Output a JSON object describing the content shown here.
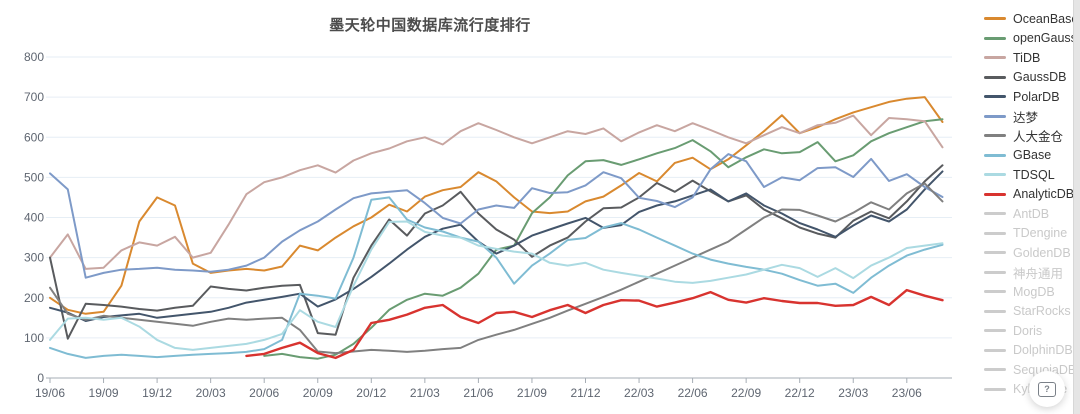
{
  "title": "墨天轮中国数据库流行度排行",
  "axes": {
    "y_tick_labels": [
      "0",
      "100",
      "200",
      "300",
      "400",
      "500",
      "600",
      "700",
      "800"
    ],
    "x_tick_labels": [
      "19/06",
      "19/09",
      "19/12",
      "20/03",
      "20/06",
      "20/09",
      "20/12",
      "21/03",
      "21/06",
      "21/09",
      "21/12",
      "22/03",
      "22/06",
      "22/09",
      "22/12",
      "23/03",
      "23/06"
    ]
  },
  "colors": {
    "grid": "#e6eef5",
    "axis": "#a6adb5",
    "axis_text": "#5f6671",
    "inactive": "#cccccc"
  },
  "ui": {
    "help_button_label": "?",
    "scrollbar": true
  },
  "chart_data": {
    "type": "line",
    "title": "墨天轮中国数据库流行度排行",
    "xlabel": "",
    "ylabel": "",
    "ylim": [
      0,
      800
    ],
    "grid": true,
    "legend_position": "right",
    "x_resolution": "monthly",
    "x": [
      "19/06",
      "19/07",
      "19/08",
      "19/09",
      "19/10",
      "19/11",
      "19/12",
      "20/01",
      "20/02",
      "20/03",
      "20/04",
      "20/05",
      "20/06",
      "20/07",
      "20/08",
      "20/09",
      "20/10",
      "20/11",
      "20/12",
      "21/01",
      "21/02",
      "21/03",
      "21/04",
      "21/05",
      "21/06",
      "21/07",
      "21/08",
      "21/09",
      "21/10",
      "21/11",
      "21/12",
      "22/01",
      "22/02",
      "22/03",
      "22/04",
      "22/05",
      "22/06",
      "22/07",
      "22/08",
      "22/09",
      "22/10",
      "22/11",
      "22/12",
      "23/01",
      "23/02",
      "23/03",
      "23/04",
      "23/05",
      "23/06",
      "23/07",
      "23/08"
    ],
    "series": [
      {
        "name": "OceanBase",
        "color": "#d9892f",
        "enabled": true,
        "values": [
          200,
          170,
          160,
          165,
          230,
          390,
          450,
          430,
          285,
          262,
          268,
          272,
          268,
          278,
          330,
          318,
          350,
          378,
          400,
          432,
          415,
          452,
          468,
          476,
          513,
          490,
          450,
          415,
          411,
          415,
          440,
          452,
          480,
          511,
          490,
          536,
          549,
          520,
          545,
          580,
          615,
          655,
          610,
          625,
          645,
          662,
          675,
          688,
          696,
          700,
          638
        ]
      },
      {
        "name": "openGauss",
        "color": "#699c72",
        "enabled": true,
        "values": [
          null,
          null,
          null,
          null,
          null,
          null,
          null,
          null,
          null,
          null,
          null,
          null,
          55,
          60,
          52,
          48,
          58,
          85,
          125,
          170,
          195,
          210,
          205,
          225,
          260,
          320,
          330,
          411,
          450,
          505,
          540,
          543,
          531,
          545,
          560,
          573,
          593,
          565,
          525,
          550,
          570,
          560,
          563,
          588,
          540,
          555,
          590,
          610,
          625,
          640,
          645
        ]
      },
      {
        "name": "TiDB",
        "color": "#c8a6a1",
        "enabled": true,
        "values": [
          300,
          358,
          272,
          275,
          318,
          338,
          330,
          352,
          300,
          312,
          382,
          458,
          488,
          500,
          518,
          530,
          512,
          542,
          560,
          572,
          590,
          600,
          582,
          615,
          635,
          618,
          600,
          585,
          600,
          615,
          608,
          622,
          590,
          612,
          630,
          615,
          635,
          618,
          600,
          585,
          605,
          625,
          610,
          630,
          636,
          654,
          605,
          648,
          645,
          640,
          575
        ]
      },
      {
        "name": "GaussDB",
        "color": "#595b5e",
        "enabled": true,
        "values": [
          300,
          98,
          185,
          182,
          178,
          172,
          168,
          175,
          180,
          228,
          222,
          218,
          225,
          230,
          232,
          112,
          108,
          250,
          330,
          395,
          355,
          410,
          430,
          464,
          410,
          370,
          345,
          302,
          330,
          350,
          390,
          423,
          425,
          450,
          486,
          464,
          492,
          465,
          440,
          455,
          420,
          398,
          375,
          360,
          350,
          392,
          415,
          398,
          440,
          490,
          530
        ]
      },
      {
        "name": "PolarDB",
        "color": "#43556b",
        "enabled": true,
        "values": [
          175,
          163,
          142,
          152,
          156,
          160,
          150,
          155,
          160,
          165,
          175,
          188,
          195,
          202,
          210,
          178,
          196,
          222,
          252,
          285,
          320,
          352,
          372,
          382,
          340,
          310,
          330,
          355,
          370,
          385,
          399,
          374,
          381,
          414,
          430,
          440,
          455,
          470,
          440,
          460,
          430,
          410,
          386,
          370,
          352,
          380,
          405,
          390,
          420,
          470,
          515
        ]
      },
      {
        "name": "达梦",
        "color": "#7e9ac8",
        "enabled": true,
        "values": [
          510,
          470,
          250,
          262,
          270,
          272,
          275,
          270,
          268,
          265,
          270,
          280,
          300,
          340,
          368,
          390,
          420,
          448,
          460,
          464,
          468,
          436,
          399,
          385,
          420,
          430,
          424,
          473,
          461,
          463,
          480,
          513,
          498,
          449,
          441,
          426,
          450,
          520,
          558,
          540,
          476,
          500,
          493,
          523,
          525,
          501,
          546,
          491,
          508,
          476,
          451
        ]
      },
      {
        "name": "人大金仓",
        "color": "#808080",
        "enabled": true,
        "values": [
          225,
          160,
          145,
          155,
          150,
          145,
          140,
          135,
          130,
          140,
          148,
          145,
          148,
          150,
          120,
          66,
          62,
          66,
          70,
          68,
          65,
          68,
          72,
          75,
          95,
          108,
          120,
          135,
          150,
          168,
          185,
          202,
          220,
          240,
          260,
          280,
          300,
          320,
          340,
          370,
          400,
          420,
          419,
          405,
          390,
          412,
          438,
          420,
          460,
          485,
          440
        ]
      },
      {
        "name": "GBase",
        "color": "#7fbcd3",
        "enabled": true,
        "values": [
          75,
          60,
          50,
          55,
          58,
          55,
          52,
          55,
          58,
          60,
          62,
          65,
          72,
          95,
          210,
          205,
          198,
          300,
          444,
          450,
          395,
          375,
          365,
          350,
          340,
          300,
          235,
          280,
          310,
          344,
          349,
          375,
          386,
          370,
          350,
          330,
          310,
          295,
          285,
          277,
          270,
          260,
          244,
          230,
          235,
          212,
          250,
          280,
          305,
          320,
          332
        ]
      },
      {
        "name": "TDSQL",
        "color": "#abdae2",
        "enabled": true,
        "values": [
          95,
          148,
          150,
          145,
          150,
          128,
          95,
          75,
          70,
          75,
          80,
          85,
          95,
          110,
          169,
          140,
          127,
          230,
          320,
          389,
          390,
          364,
          355,
          350,
          330,
          322,
          315,
          310,
          287,
          280,
          287,
          270,
          262,
          255,
          248,
          240,
          237,
          242,
          250,
          258,
          270,
          282,
          274,
          252,
          274,
          249,
          280,
          300,
          324,
          330,
          336
        ]
      },
      {
        "name": "AnalyticDB",
        "color": "#d8332f",
        "enabled": true,
        "values": [
          null,
          null,
          null,
          null,
          null,
          null,
          null,
          null,
          null,
          null,
          null,
          55,
          60,
          75,
          88,
          62,
          50,
          70,
          137,
          145,
          158,
          175,
          182,
          152,
          137,
          162,
          165,
          152,
          169,
          182,
          162,
          182,
          194,
          193,
          178,
          188,
          199,
          214,
          195,
          188,
          199,
          192,
          187,
          187,
          180,
          182,
          202,
          182,
          219,
          205,
          194
        ]
      },
      {
        "name": "AntDB",
        "color": "#cccccc",
        "enabled": false,
        "values": []
      },
      {
        "name": "TDengine",
        "color": "#cccccc",
        "enabled": false,
        "values": []
      },
      {
        "name": "GoldenDB",
        "color": "#cccccc",
        "enabled": false,
        "values": []
      },
      {
        "name": "神舟通用",
        "color": "#cccccc",
        "enabled": false,
        "values": []
      },
      {
        "name": "MogDB",
        "color": "#cccccc",
        "enabled": false,
        "values": []
      },
      {
        "name": "StarRocks",
        "color": "#cccccc",
        "enabled": false,
        "values": []
      },
      {
        "name": "Doris",
        "color": "#cccccc",
        "enabled": false,
        "values": []
      },
      {
        "name": "DolphinDB",
        "color": "#cccccc",
        "enabled": false,
        "values": []
      },
      {
        "name": "SequoiaDB",
        "color": "#cccccc",
        "enabled": false,
        "values": []
      },
      {
        "name": "Kyligence",
        "color": "#cccccc",
        "enabled": false,
        "values": []
      }
    ]
  }
}
